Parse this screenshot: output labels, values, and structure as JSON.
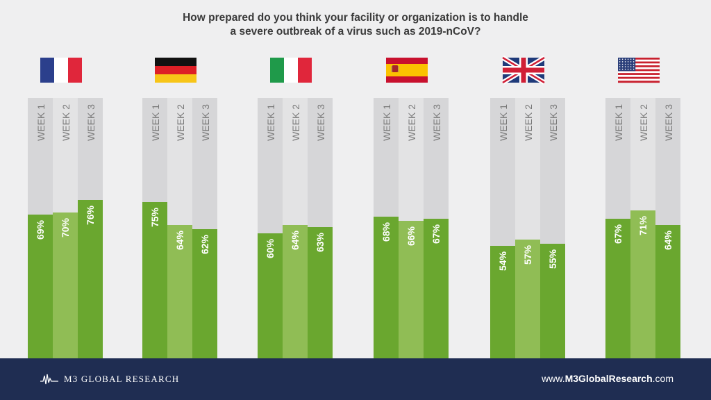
{
  "title_line1": "How prepared do you think your facility or organization is to handle",
  "title_line2": "a severe outbreak of a virus such as 2019-nCoV?",
  "footer": {
    "brand": "M3 GLOBAL RESEARCH",
    "url_prefix": "www.",
    "url_bold": "M3GlobalResearch",
    "url_suffix": ".com"
  },
  "colors": {
    "bar_dark": "#6aa72f",
    "bar_light": "#90bd55",
    "track_light": "#e3e3e4",
    "track_dark": "#d6d6d8",
    "footer": "#1f2d52"
  },
  "chart_data": {
    "type": "bar",
    "unit": "%",
    "ylim": [
      0,
      100
    ],
    "categories": [
      "WEEK 1",
      "WEEK 2",
      "WEEK 3"
    ],
    "groups": [
      {
        "flag": "france-flag",
        "values": [
          69,
          70,
          76
        ]
      },
      {
        "flag": "germany-flag",
        "values": [
          75,
          64,
          62
        ]
      },
      {
        "flag": "italy-flag",
        "values": [
          60,
          64,
          63
        ]
      },
      {
        "flag": "spain-flag",
        "values": [
          68,
          66,
          67
        ]
      },
      {
        "flag": "uk-flag",
        "values": [
          54,
          57,
          55
        ]
      },
      {
        "flag": "usa-flag",
        "values": [
          67,
          71,
          64
        ]
      }
    ]
  }
}
